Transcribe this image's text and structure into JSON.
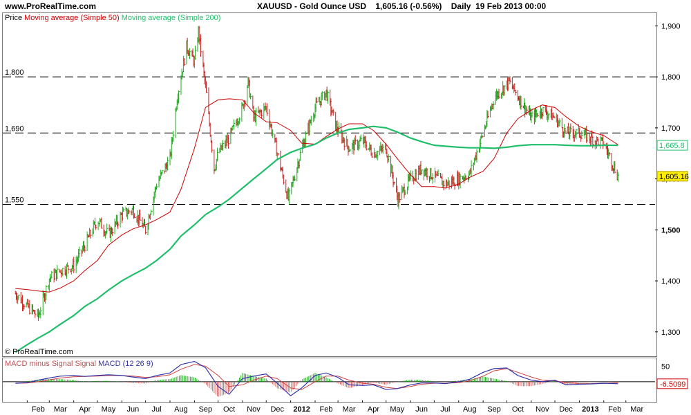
{
  "header": {
    "site": "www.ProRealTime.com",
    "instrument": "XAUUSD - Gold Ounce USD",
    "last": "1,605.16 (-0.56%)",
    "period": "Daily",
    "datetime": "19 Feb 2013 00:00"
  },
  "legend": {
    "price": "Price",
    "ma50": "Moving average (Simple 50)",
    "ma200": "Moving average (Simple 200)"
  },
  "macd_legend": {
    "hist": "MACD minus Signal Signal",
    "macd": "MACD",
    "params": "(12 26 9)"
  },
  "copyright": "© ProRealTime.com",
  "colors": {
    "up": "#22aa22",
    "down": "#cc2222",
    "ma50": "#cc0000",
    "ma200": "#1fbf6a",
    "macd": "#3333aa",
    "hist": "#d06a6a",
    "last_price_bg": "#ffee00"
  },
  "chart_data": {
    "type": "line",
    "title": "XAUUSD - Gold Ounce USD",
    "xlabel": "",
    "ylabel": "",
    "ylim": [
      1255,
      1925
    ],
    "y_ticks": [
      "1,300",
      "1,400",
      "1,500",
      "1,600",
      "1,700",
      "1,800",
      "1,900"
    ],
    "x_ticks": [
      "Feb",
      "Mar",
      "Apr",
      "May",
      "Jun",
      "Jul",
      "Aug",
      "Sep",
      "Oct",
      "Nov",
      "Dec",
      "2012",
      "Feb",
      "Mar",
      "Apr",
      "May",
      "Jun",
      "Jul",
      "Aug",
      "Sep",
      "Oct",
      "Nov",
      "Dec",
      "2013",
      "Feb",
      "Mar"
    ],
    "horizontal_levels": [
      {
        "value": 1800,
        "label": "1,800"
      },
      {
        "value": 1690,
        "label": "1,690"
      },
      {
        "value": 1550,
        "label": "1,550"
      }
    ],
    "markers": [
      {
        "label": "1,665.8",
        "value": 1665.8,
        "series": "Moving average (Simple 200)"
      },
      {
        "label": "1,605.16",
        "value": 1605.16,
        "series": "Price"
      }
    ],
    "close_path": {
      "dates": [
        "2011-01-17",
        "2011-02-01",
        "2011-02-15",
        "2011-03-01",
        "2011-03-15",
        "2011-04-01",
        "2011-04-15",
        "2011-05-01",
        "2011-05-15",
        "2011-06-01",
        "2011-06-15",
        "2011-07-01",
        "2011-07-15",
        "2011-08-01",
        "2011-08-10",
        "2011-08-22",
        "2011-09-01",
        "2011-09-06",
        "2011-09-15",
        "2011-09-26",
        "2011-10-01",
        "2011-10-15",
        "2011-11-01",
        "2011-11-08",
        "2011-11-15",
        "2011-12-01",
        "2011-12-15",
        "2011-12-29",
        "2012-01-15",
        "2012-02-01",
        "2012-02-15",
        "2012-02-28",
        "2012-03-15",
        "2012-04-01",
        "2012-04-15",
        "2012-05-01",
        "2012-05-16",
        "2012-06-01",
        "2012-06-15",
        "2012-07-01",
        "2012-07-15",
        "2012-08-01",
        "2012-08-15",
        "2012-09-01",
        "2012-09-15",
        "2012-10-04",
        "2012-10-20",
        "2012-11-01",
        "2012-11-15",
        "2012-12-01",
        "2012-12-15",
        "2013-01-01",
        "2013-01-15",
        "2013-02-01",
        "2013-02-19"
      ],
      "values": [
        1375,
        1350,
        1330,
        1405,
        1420,
        1430,
        1470,
        1520,
        1490,
        1530,
        1540,
        1500,
        1590,
        1640,
        1760,
        1860,
        1830,
        1890,
        1780,
        1620,
        1650,
        1680,
        1740,
        1790,
        1720,
        1740,
        1650,
        1560,
        1660,
        1740,
        1770,
        1700,
        1660,
        1675,
        1650,
        1660,
        1560,
        1600,
        1620,
        1605,
        1590,
        1600,
        1610,
        1690,
        1760,
        1790,
        1750,
        1720,
        1735,
        1720,
        1690,
        1690,
        1680,
        1670,
        1605
      ]
    },
    "series": [
      {
        "name": "Moving average (Simple 50)",
        "dates": [
          "2011-01-17",
          "2011-02-01",
          "2011-02-15",
          "2011-03-01",
          "2011-03-15",
          "2011-04-01",
          "2011-04-15",
          "2011-05-01",
          "2011-05-15",
          "2011-06-01",
          "2011-06-15",
          "2011-07-01",
          "2011-07-15",
          "2011-08-01",
          "2011-08-15",
          "2011-09-01",
          "2011-09-15",
          "2011-10-01",
          "2011-10-15",
          "2011-11-01",
          "2011-11-15",
          "2011-12-01",
          "2011-12-15",
          "2012-01-01",
          "2012-01-15",
          "2012-02-01",
          "2012-02-15",
          "2012-03-01",
          "2012-03-15",
          "2012-04-01",
          "2012-04-15",
          "2012-05-01",
          "2012-05-15",
          "2012-06-01",
          "2012-06-15",
          "2012-07-01",
          "2012-07-15",
          "2012-08-01",
          "2012-08-15",
          "2012-09-01",
          "2012-09-15",
          "2012-10-01",
          "2012-10-15",
          "2012-11-01",
          "2012-11-15",
          "2012-12-01",
          "2012-12-15",
          "2013-01-01",
          "2013-01-15",
          "2013-02-01",
          "2013-02-19"
        ],
        "values": [
          1385,
          1383,
          1380,
          1378,
          1386,
          1400,
          1420,
          1440,
          1470,
          1490,
          1502,
          1510,
          1520,
          1535,
          1580,
          1660,
          1740,
          1755,
          1757,
          1755,
          1730,
          1712,
          1710,
          1695,
          1670,
          1668,
          1683,
          1698,
          1708,
          1708,
          1695,
          1668,
          1640,
          1608,
          1585,
          1585,
          1582,
          1590,
          1603,
          1615,
          1640,
          1690,
          1718,
          1735,
          1745,
          1740,
          1722,
          1703,
          1693,
          1685,
          1667
        ]
      },
      {
        "name": "Moving average (Simple 200)",
        "dates": [
          "2011-01-17",
          "2011-02-01",
          "2011-02-15",
          "2011-03-01",
          "2011-03-15",
          "2011-04-01",
          "2011-04-15",
          "2011-05-01",
          "2011-05-15",
          "2011-06-01",
          "2011-06-15",
          "2011-07-01",
          "2011-07-15",
          "2011-08-01",
          "2011-08-15",
          "2011-09-01",
          "2011-09-15",
          "2011-10-01",
          "2011-10-15",
          "2011-11-01",
          "2011-11-15",
          "2011-12-01",
          "2011-12-15",
          "2012-01-01",
          "2012-01-15",
          "2012-02-01",
          "2012-02-15",
          "2012-03-01",
          "2012-03-15",
          "2012-04-01",
          "2012-04-15",
          "2012-05-01",
          "2012-05-15",
          "2012-06-01",
          "2012-06-15",
          "2012-07-01",
          "2012-07-15",
          "2012-08-01",
          "2012-08-15",
          "2012-09-01",
          "2012-09-15",
          "2012-10-01",
          "2012-10-15",
          "2012-11-01",
          "2012-11-15",
          "2012-12-01",
          "2012-12-15",
          "2013-01-01",
          "2013-01-15",
          "2013-02-01",
          "2013-02-19"
        ],
        "values": [
          1260,
          1275,
          1288,
          1300,
          1315,
          1332,
          1350,
          1365,
          1382,
          1400,
          1412,
          1425,
          1440,
          1462,
          1488,
          1510,
          1530,
          1545,
          1560,
          1582,
          1600,
          1620,
          1638,
          1652,
          1660,
          1668,
          1680,
          1690,
          1697,
          1700,
          1703,
          1700,
          1692,
          1680,
          1673,
          1666,
          1664,
          1662,
          1661,
          1661,
          1660,
          1662,
          1665,
          1667,
          1667,
          1667,
          1666,
          1665,
          1665,
          1666,
          1665.8
        ]
      }
    ],
    "macd": {
      "ylim": [
        -60,
        75
      ],
      "y_ticks": [
        "50"
      ],
      "marker": {
        "label": "-6.5099",
        "value": -6.5099
      },
      "dates": [
        "2011-01-17",
        "2011-02-01",
        "2011-02-15",
        "2011-03-01",
        "2011-03-15",
        "2011-04-01",
        "2011-04-15",
        "2011-05-01",
        "2011-05-15",
        "2011-06-01",
        "2011-06-15",
        "2011-07-01",
        "2011-07-15",
        "2011-08-01",
        "2011-08-15",
        "2011-09-01",
        "2011-09-15",
        "2011-10-01",
        "2011-10-15",
        "2011-11-01",
        "2011-11-15",
        "2011-12-01",
        "2011-12-15",
        "2012-01-01",
        "2012-01-15",
        "2012-02-01",
        "2012-02-15",
        "2012-03-01",
        "2012-03-15",
        "2012-04-01",
        "2012-04-15",
        "2012-05-01",
        "2012-05-15",
        "2012-06-01",
        "2012-06-15",
        "2012-07-01",
        "2012-07-15",
        "2012-08-01",
        "2012-08-15",
        "2012-09-01",
        "2012-09-15",
        "2012-10-01",
        "2012-10-15",
        "2012-11-01",
        "2012-11-15",
        "2012-12-01",
        "2012-12-15",
        "2013-01-01",
        "2013-01-15",
        "2013-02-01",
        "2013-02-19"
      ],
      "macd": [
        -5,
        -3,
        5,
        12,
        18,
        20,
        17,
        20,
        22,
        20,
        15,
        10,
        20,
        28,
        55,
        65,
        45,
        -15,
        -40,
        10,
        18,
        25,
        -5,
        -45,
        -20,
        20,
        28,
        14,
        -10,
        -12,
        -10,
        -25,
        -22,
        -10,
        -4,
        -4,
        -6,
        0,
        8,
        30,
        42,
        44,
        20,
        5,
        0,
        5,
        -10,
        -8,
        -7,
        -5,
        -6.5
      ],
      "signal": [
        -5,
        -4,
        0,
        6,
        12,
        16,
        17,
        18,
        20,
        20,
        18,
        14,
        16,
        22,
        40,
        55,
        50,
        20,
        -15,
        -10,
        5,
        18,
        10,
        -20,
        -25,
        0,
        18,
        18,
        5,
        -5,
        -8,
        -18,
        -22,
        -15,
        -8,
        -5,
        -5,
        -3,
        3,
        18,
        35,
        42,
        30,
        15,
        5,
        3,
        -3,
        -6,
        -6,
        -5,
        -4
      ]
    }
  }
}
